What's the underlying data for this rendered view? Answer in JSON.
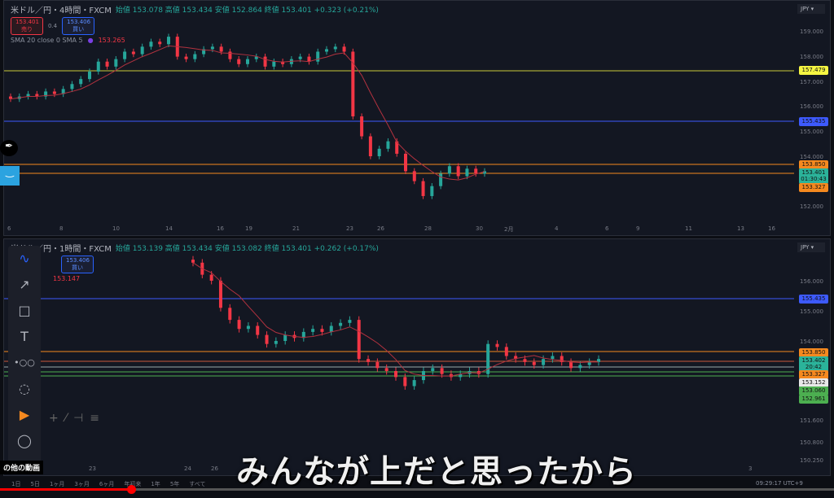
{
  "top": {
    "symbol": "米ドル／円・4時間・FXCM",
    "ohlc": "始値 153.078 高値 153.434 安値 152.864 終値 153.401 +0.323 (+0.21%)",
    "sell_price": "153.401",
    "sell_label": "売り",
    "spread": "0.4",
    "buy_price": "153.406",
    "buy_label": "買い",
    "sma_label": "SMA 20 close 0 SMA 5",
    "sma_value": "153.265",
    "currency": "JPY",
    "axis": [
      "159.000",
      "158.000",
      "157.000",
      "156.000",
      "155.000",
      "154.000",
      "152.000"
    ],
    "price_labels": [
      {
        "text": "157.479",
        "color": "#f5f542"
      },
      {
        "text": "155.435",
        "color": "#3d5afe"
      },
      {
        "text": "153.850",
        "color": "#f5891f"
      },
      {
        "text": "153.401",
        "color": "#2bb39a"
      },
      {
        "text": "01:30:43",
        "color": "#2bb39a"
      },
      {
        "text": "153.327",
        "color": "#f5891f"
      }
    ],
    "x_ticks": [
      "6",
      "8",
      "10",
      "14",
      "16",
      "19",
      "21",
      "23",
      "26",
      "28",
      "30",
      "2月",
      "4",
      "6",
      "9",
      "11",
      "13",
      "16"
    ],
    "closes": [
      156.3,
      156.4,
      156.5,
      156.4,
      156.6,
      156.5,
      156.7,
      156.9,
      157.1,
      157.4,
      157.8,
      157.6,
      157.9,
      158.2,
      158.1,
      158.4,
      158.6,
      158.5,
      158.8,
      158.0,
      157.9,
      158.1,
      158.3,
      158.4,
      158.2,
      157.9,
      157.7,
      157.9,
      158.0,
      157.6,
      157.8,
      157.7,
      157.9,
      158.0,
      157.8,
      158.2,
      158.3,
      158.4,
      158.2,
      155.6,
      154.8,
      154.0,
      154.3,
      154.6,
      154.1,
      153.4,
      153.0,
      152.4,
      152.8,
      153.3,
      153.6,
      153.2,
      153.5,
      153.3,
      153.4
    ]
  },
  "bottom": {
    "symbol": "米ドル／円・1時間・FXCM",
    "ohlc": "始値 153.139 高値 153.434 安値 153.082 終値 153.401 +0.262 (+0.17%)",
    "buy_price": "153.406",
    "buy_label": "買い",
    "sma_value": "153.147",
    "currency": "JPY",
    "axis": [
      "156.000",
      "155.000",
      "154.000",
      "151.600",
      "150.800",
      "150.250"
    ],
    "price_labels": [
      {
        "text": "155.435",
        "color": "#3d5afe"
      },
      {
        "text": "153.850",
        "color": "#f5891f"
      },
      {
        "text": "153.402",
        "color": "#2bb39a"
      },
      {
        "text": "20:42",
        "color": "#2bb39a"
      },
      {
        "text": "153.327",
        "color": "#f5891f"
      },
      {
        "text": "153.152",
        "color": "#e8e8e8"
      },
      {
        "text": "153.060",
        "color": "#4caf50"
      },
      {
        "text": "152.961",
        "color": "#4caf50"
      }
    ],
    "x_ticks": [
      "23",
      "24",
      "26",
      "3"
    ],
    "closes": [
      156.6,
      156.2,
      156.0,
      155.1,
      154.7,
      154.4,
      154.5,
      154.2,
      153.9,
      154.0,
      154.2,
      154.1,
      154.3,
      154.4,
      154.3,
      154.5,
      154.6,
      154.7,
      153.4,
      153.3,
      153.1,
      153.0,
      152.8,
      152.5,
      152.7,
      153.0,
      153.1,
      152.9,
      152.8,
      152.9,
      153.0,
      152.9,
      153.9,
      153.8,
      153.5,
      153.4,
      153.3,
      153.2,
      153.4,
      153.5,
      153.3,
      153.1,
      153.2,
      153.3,
      153.4
    ]
  },
  "toolbar": {
    "icons": [
      "pen-icon",
      "arrow-icon",
      "rectangle-icon",
      "text-icon",
      "measure-icon",
      "cycle-icon",
      "replay-icon",
      "magnet-icon"
    ]
  },
  "video": {
    "subtitle": "みんなが上だと思ったから",
    "more_videos": "の他の動画",
    "time": "09:29:17 UTC+9",
    "ranges": [
      "1日",
      "5日",
      "1ヶ月",
      "3ヶ月",
      "6ヶ月",
      "年初来",
      "1年",
      "5年",
      "すべて"
    ],
    "progress": 0.157
  },
  "colors": {
    "up": "#26a69a",
    "down": "#f23645",
    "sma": "#b2323f"
  }
}
